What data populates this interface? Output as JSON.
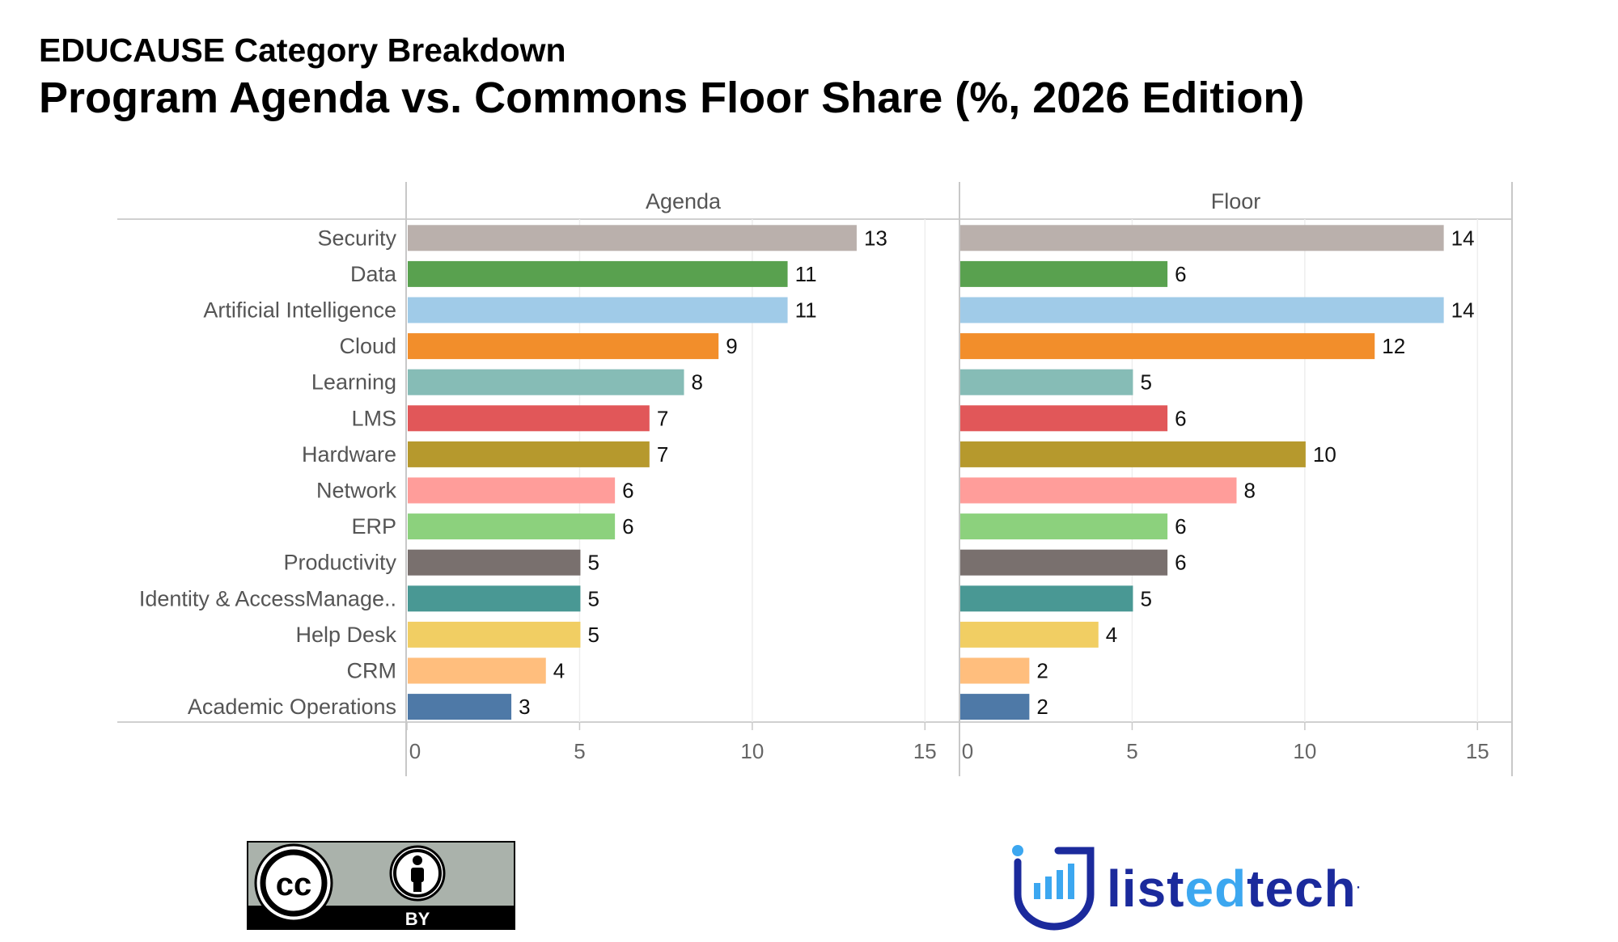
{
  "header": {
    "subtitle": "EDUCAUSE Category Breakdown",
    "title": "Program Agenda vs. Commons Floor Share (%, 2026 Edition)"
  },
  "chart_data": {
    "type": "bar",
    "orientation": "horizontal",
    "categories": [
      "Security",
      "Data",
      "Artificial Intelligence",
      "Cloud",
      "Learning",
      "LMS",
      "Hardware",
      "Network",
      "ERP",
      "Productivity",
      "Identity  & AccessManage..",
      "Help Desk",
      "CRM",
      "Academic Operations"
    ],
    "colors": [
      "#bab0ac",
      "#59a14f",
      "#a0cbe8",
      "#f28e2b",
      "#86bcb6",
      "#e15759",
      "#b6992d",
      "#ff9d9a",
      "#8cd17d",
      "#79706e",
      "#499894",
      "#f1ce63",
      "#ffbe7d",
      "#4e79a7"
    ],
    "panels": [
      {
        "name": "Agenda",
        "values": [
          13,
          11,
          11,
          9,
          8,
          7,
          7,
          6,
          6,
          5,
          5,
          5,
          4,
          3
        ]
      },
      {
        "name": "Floor",
        "values": [
          14,
          6,
          14,
          12,
          5,
          6,
          10,
          8,
          6,
          6,
          5,
          4,
          2,
          2
        ]
      }
    ],
    "xlim": [
      0,
      16
    ],
    "xticks": [
      0,
      5,
      10,
      15
    ],
    "data_labels": true,
    "grid": "vertical"
  },
  "footer": {
    "license_label": "BY",
    "cc_label": "cc",
    "logo_parts": [
      "list",
      "ed",
      "tech",
      "."
    ],
    "brand_dark": "#1b2a9c",
    "brand_light": "#3ca7f0"
  }
}
